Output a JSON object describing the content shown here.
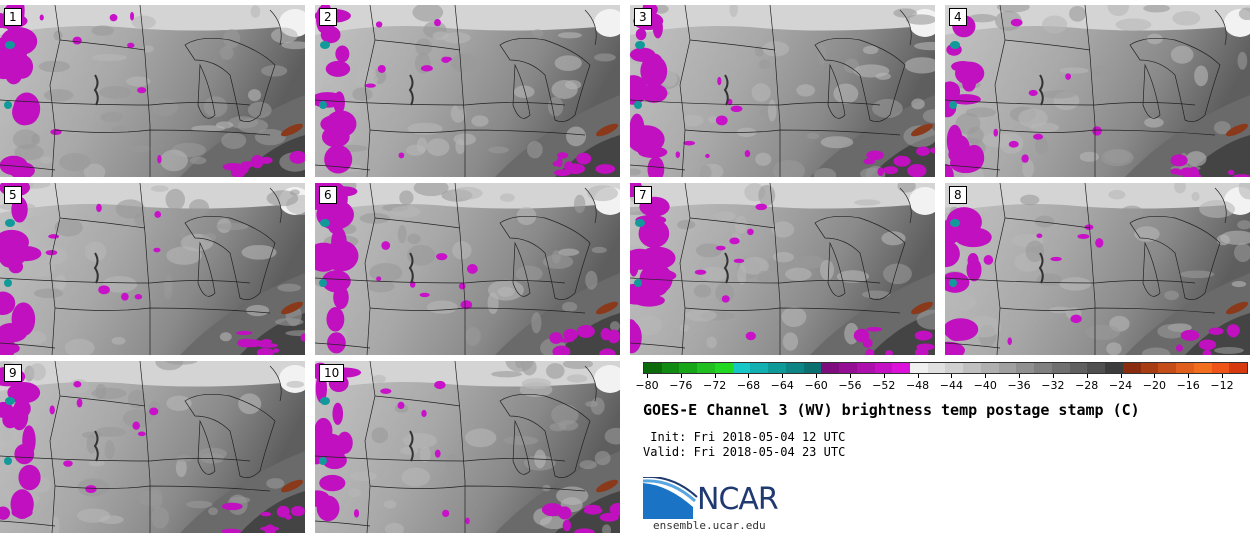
{
  "panels": [
    {
      "label": "1"
    },
    {
      "label": "2"
    },
    {
      "label": "3"
    },
    {
      "label": "4"
    },
    {
      "label": "5"
    },
    {
      "label": "6"
    },
    {
      "label": "7"
    },
    {
      "label": "8"
    },
    {
      "label": "9"
    },
    {
      "label": "10"
    }
  ],
  "colorbar": {
    "min": -80,
    "max": -10,
    "tick_labels": [
      "−80",
      "−76",
      "−72",
      "−68",
      "−64",
      "−60",
      "−56",
      "−52",
      "−48",
      "−44",
      "−40",
      "−36",
      "−32",
      "−28",
      "−24",
      "−20",
      "−16",
      "−12"
    ],
    "colors": [
      "#0b6b0b",
      "#108a10",
      "#17a617",
      "#1fc01f",
      "#23d823",
      "#17c6c6",
      "#12b0b0",
      "#0f9a9a",
      "#0d8585",
      "#0a7070",
      "#7e0e7e",
      "#950f95",
      "#ad10ad",
      "#c411c4",
      "#da12da",
      "#f0f0f0",
      "#e0e0e0",
      "#d0d0d0",
      "#c0c0c0",
      "#b0b0b0",
      "#a0a0a0",
      "#909090",
      "#808080",
      "#707070",
      "#606060",
      "#505050",
      "#3c3c3c",
      "#8a2c10",
      "#a83c12",
      "#c54e18",
      "#e05f1c",
      "#f26e1e",
      "#ee5418",
      "#d83a10"
    ]
  },
  "title": "GOES-E Channel 3 (WV) brightness temp postage stamp (C)",
  "init": " Init: Fri 2018-05-04 12 UTC",
  "valid": "Valid: Fri 2018-05-04 23 UTC",
  "logo": {
    "text": "NCAR",
    "site": "ensemble.ucar.edu",
    "brand_color": "#1f3a70",
    "accent_color": "#1a73c4"
  }
}
